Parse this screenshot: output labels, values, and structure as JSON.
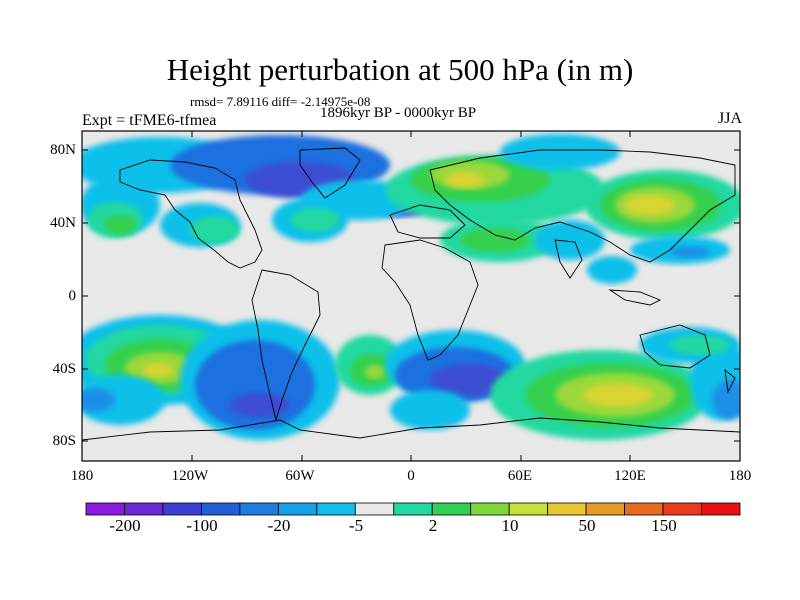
{
  "title": "Height perturbation at 500 hPa (in m)",
  "stats": "rmsd= 7.89116 diff= -2.14975e-08",
  "period": "1896kyr BP - 0000kyr BP",
  "experiment": "Expt = tFME6-tfmea",
  "season": "JJA",
  "map": {
    "lat_labels": [
      "80N",
      "40N",
      "0",
      "40S",
      "80S"
    ],
    "lon_labels": [
      "180",
      "120W",
      "60W",
      "0",
      "60E",
      "120E",
      "180"
    ]
  },
  "colorbar": {
    "labels": [
      "-200",
      "-100",
      "-20",
      "-5",
      "2",
      "10",
      "50",
      "150"
    ],
    "colors": [
      "#8a1ce0",
      "#6a28d8",
      "#3c3ed6",
      "#1f5fd8",
      "#1c7fe0",
      "#16a0e8",
      "#10c0ea",
      "#e8e8e8",
      "#20d8a0",
      "#30d050",
      "#7ed83a",
      "#c8e03a",
      "#e8c832",
      "#e89a28",
      "#e86a20",
      "#e83c1c",
      "#e81010"
    ]
  },
  "palette": {
    "blue_dark": "#3c4ed2",
    "blue": "#1f6fe0",
    "blue_mid": "#1a90e6",
    "cyan": "#10c0ea",
    "neutral": "#e8e8e8",
    "teal": "#20d8a0",
    "green": "#34d04e",
    "lime": "#9ad83a",
    "yellow": "#d8d432",
    "orange": "#e8b032"
  }
}
